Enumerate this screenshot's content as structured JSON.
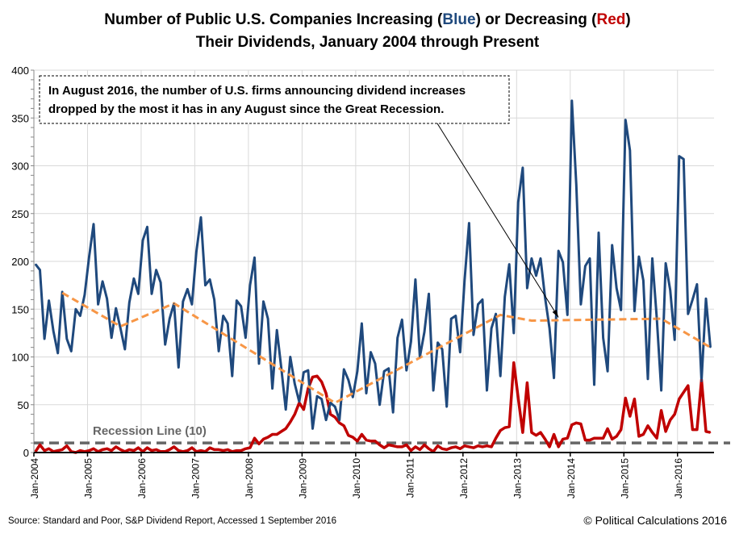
{
  "chart_data": {
    "type": "line",
    "title_line1_parts": [
      "Number of Public U.S. Companies Increasing (",
      "Blue",
      ")  or Decreasing (",
      "Red",
      ")"
    ],
    "title_line2": "Their Dividends, January 2004 through Present",
    "ylim": [
      0,
      400
    ],
    "yticks": [
      0,
      50,
      100,
      150,
      200,
      250,
      300,
      350,
      400
    ],
    "xticks": [
      "Jan-2004",
      "Jan-2005",
      "Jan-2006",
      "Jan-2007",
      "Jan-2008",
      "Jan-2009",
      "Jan-2010",
      "Jan-2011",
      "Jan-2012",
      "Jan-2013",
      "Jan-2014",
      "Jan-2015",
      "Jan-2016"
    ],
    "x_start": "2004-01",
    "x_end": "2016-08",
    "grid": true,
    "colors": {
      "increases": "#1f497d",
      "decreases": "#c00000",
      "trend": "#f79646",
      "recession": "#666666",
      "title_blue": "#1f497d",
      "title_red": "#c00000"
    },
    "series": [
      {
        "key": "increases",
        "values": [
          197,
          191,
          119,
          159,
          127,
          104,
          168,
          119,
          106,
          150,
          143,
          165,
          205,
          239,
          155,
          179,
          161,
          120,
          151,
          130,
          108,
          157,
          182,
          166,
          222,
          236,
          166,
          191,
          178,
          113,
          140,
          156,
          89,
          158,
          171,
          155,
          210,
          246,
          175,
          181,
          160,
          106,
          143,
          135,
          80,
          159,
          153,
          120,
          175,
          204,
          93,
          158,
          140,
          67,
          128,
          88,
          45,
          100,
          72,
          53,
          84,
          86,
          25,
          59,
          56,
          34,
          52,
          48,
          34,
          87,
          76,
          58,
          85,
          135,
          62,
          105,
          93,
          50,
          85,
          88,
          42,
          120,
          139,
          86,
          116,
          181,
          100,
          126,
          166,
          65,
          115,
          108,
          48,
          140,
          143,
          105,
          180,
          240,
          123,
          155,
          160,
          65,
          130,
          145,
          80,
          163,
          197,
          125,
          262,
          298,
          172,
          203,
          185,
          203,
          162,
          130,
          78,
          211,
          199,
          144,
          368,
          280,
          155,
          195,
          203,
          71,
          230,
          120,
          85,
          217,
          172,
          149,
          348,
          316,
          148,
          205,
          180,
          77,
          203,
          140,
          65,
          198,
          170,
          118,
          310,
          307,
          145,
          160,
          176,
          75,
          161,
          110
        ]
      },
      {
        "key": "decreases",
        "values": [
          1,
          8,
          2,
          4,
          1,
          2,
          3,
          7,
          1,
          0,
          2,
          1,
          2,
          4,
          1,
          3,
          4,
          2,
          6,
          3,
          1,
          3,
          2,
          5,
          1,
          5,
          2,
          3,
          1,
          1,
          3,
          6,
          2,
          1,
          2,
          5,
          1,
          2,
          1,
          5,
          3,
          3,
          2,
          3,
          1,
          2,
          2,
          4,
          5,
          15,
          9,
          14,
          16,
          19,
          19,
          22,
          25,
          32,
          40,
          52,
          45,
          67,
          79,
          80,
          74,
          62,
          40,
          37,
          31,
          28,
          18,
          16,
          12,
          19,
          13,
          12,
          12,
          8,
          5,
          8,
          7,
          6,
          6,
          8,
          2,
          6,
          3,
          8,
          4,
          1,
          7,
          4,
          3,
          5,
          6,
          4,
          7,
          6,
          5,
          7,
          6,
          7,
          6,
          15,
          23,
          26,
          27,
          94,
          57,
          21,
          73,
          21,
          18,
          21,
          14,
          6,
          19,
          6,
          14,
          15,
          29,
          31,
          30,
          13,
          13,
          15,
          15,
          15,
          25,
          14,
          17,
          24,
          57,
          38,
          56,
          17,
          19,
          28,
          21,
          15,
          44,
          22,
          34,
          40,
          56,
          63,
          70,
          24,
          24,
          76,
          22,
          21
        ]
      },
      {
        "key": "trend",
        "points": [
          [
            "2004-07",
            167
          ],
          [
            "2005-08",
            132
          ],
          [
            "2006-08",
            156
          ],
          [
            "2009-08",
            52
          ],
          [
            "2012-09",
            144
          ],
          [
            "2013-04",
            138
          ],
          [
            "2015-09",
            140
          ],
          [
            "2016-08",
            110
          ]
        ]
      }
    ],
    "recession_line": {
      "value": 10,
      "label": "Recession Line (10)"
    },
    "annotation": "In August 2016, the number of U.S. firms announcing dividend increases dropped by the most it has in any August since the Great Recession.",
    "annotation_line1": "In August 2016, the number of U.S. firms announcing dividend increases",
    "annotation_line2": "dropped by the most it has in any August since the Great Recession.",
    "annotation_points_to": "2013-10"
  },
  "footer": {
    "source": "Source: Standard and Poor, S&P Dividend  Report, Accessed 1 September 2016",
    "copyright": "© Political Calculations 2016"
  }
}
